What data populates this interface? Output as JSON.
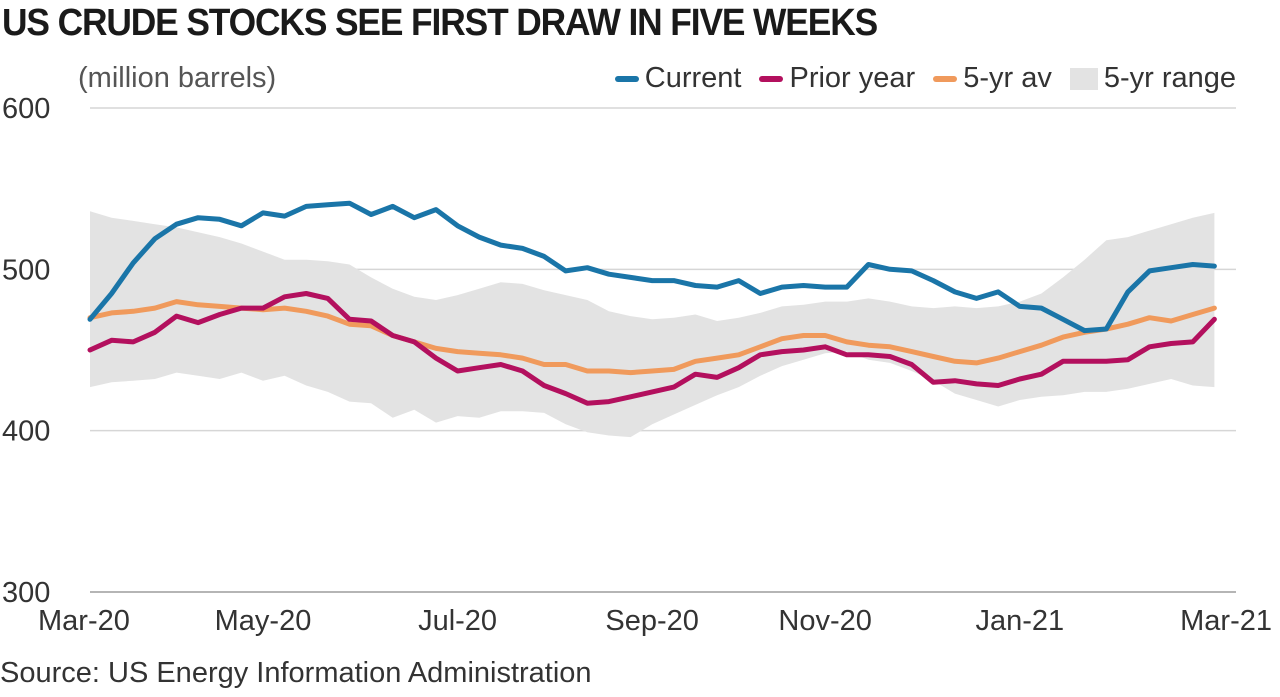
{
  "title": "US CRUDE STOCKS SEE FIRST DRAW IN FIVE WEEKS",
  "source": "Source: US Energy Information Administration",
  "chart_data": {
    "type": "line",
    "ylabel": "(million barrels)",
    "ylim": [
      300,
      600
    ],
    "yticks": [
      300,
      400,
      500,
      600
    ],
    "xlim": [
      0,
      53
    ],
    "xticks": [
      {
        "label": "Mar-20",
        "week": 0
      },
      {
        "label": "May-20",
        "week": 8
      },
      {
        "label": "Jul-20",
        "week": 17
      },
      {
        "label": "Sep-20",
        "week": 26
      },
      {
        "label": "Nov-20",
        "week": 34
      },
      {
        "label": "Jan-21",
        "week": 43
      },
      {
        "label": "Mar-21",
        "week": 52
      }
    ],
    "grid": true,
    "legend_position": "top-right",
    "colors": {
      "current": "#1a75a8",
      "prior": "#b3105e",
      "avg": "#f09a5c",
      "range": "#e3e3e3",
      "grid": "#d6d6d6"
    },
    "series": [
      {
        "name": "Current",
        "key": "current",
        "values": [
          469,
          485,
          504,
          519,
          528,
          532,
          531,
          527,
          535,
          533,
          539,
          540,
          541,
          534,
          539,
          532,
          537,
          527,
          520,
          515,
          513,
          508,
          499,
          501,
          497,
          495,
          493,
          493,
          490,
          489,
          493,
          485,
          489,
          490,
          489,
          489,
          503,
          500,
          499,
          493,
          486,
          482,
          486,
          477,
          476,
          469,
          462,
          463,
          486,
          499,
          501,
          503,
          502
        ]
      },
      {
        "name": "Prior year",
        "key": "prior",
        "values": [
          450,
          456,
          455,
          461,
          471,
          467,
          472,
          476,
          476,
          483,
          485,
          482,
          469,
          468,
          459,
          455,
          445,
          437,
          439,
          441,
          437,
          428,
          423,
          417,
          418,
          421,
          424,
          427,
          435,
          433,
          439,
          447,
          449,
          450,
          452,
          447,
          447,
          446,
          441,
          430,
          431,
          429,
          428,
          432,
          435,
          443,
          443,
          443,
          444,
          452,
          454,
          455,
          469
        ]
      },
      {
        "name": "5-yr av",
        "key": "avg",
        "values": [
          470,
          473,
          474,
          476,
          480,
          478,
          477,
          476,
          475,
          476,
          474,
          471,
          466,
          465,
          459,
          455,
          451,
          449,
          448,
          447,
          445,
          441,
          441,
          437,
          437,
          436,
          437,
          438,
          443,
          445,
          447,
          452,
          457,
          459,
          459,
          455,
          453,
          452,
          449,
          446,
          443,
          442,
          445,
          449,
          453,
          458,
          461,
          463,
          466,
          470,
          468,
          472,
          476
        ]
      },
      {
        "name": "5-yr range",
        "key": "range",
        "type": "area",
        "upper": [
          536,
          532,
          530,
          528,
          526,
          523,
          520,
          516,
          511,
          506,
          506,
          505,
          503,
          495,
          488,
          483,
          481,
          484,
          488,
          492,
          491,
          487,
          484,
          481,
          474,
          471,
          469,
          470,
          472,
          468,
          470,
          473,
          477,
          478,
          480,
          480,
          482,
          480,
          477,
          476,
          477,
          476,
          477,
          480,
          485,
          495,
          506,
          518,
          520,
          524,
          528,
          532,
          535
        ],
        "lower": [
          427,
          430,
          431,
          432,
          436,
          434,
          432,
          436,
          431,
          434,
          428,
          424,
          418,
          417,
          408,
          413,
          405,
          409,
          408,
          412,
          412,
          411,
          404,
          399,
          397,
          396,
          404,
          410,
          416,
          422,
          427,
          434,
          440,
          444,
          448,
          449,
          444,
          442,
          437,
          431,
          423,
          419,
          415,
          419,
          421,
          422,
          424,
          424,
          426,
          429,
          432,
          428,
          427
        ]
      }
    ]
  }
}
